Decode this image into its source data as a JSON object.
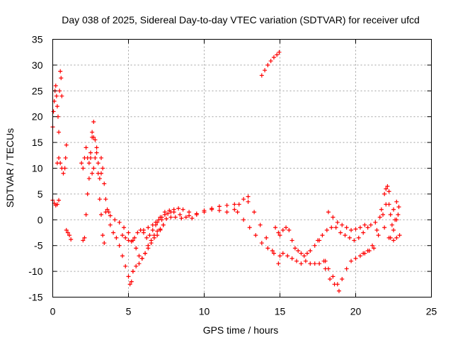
{
  "chart_data": {
    "type": "scatter",
    "title": "Day 038 of 2025, Sidereal Day-to-day VTEC variation (SDTVAR) for receiver ufcd",
    "xlabel": "GPS time / hours",
    "ylabel": "SDTVAR / TECUs",
    "xlim": [
      0,
      25
    ],
    "ylim": [
      -15,
      35
    ],
    "xticks": [
      0,
      5,
      10,
      15,
      20,
      25
    ],
    "yticks": [
      -15,
      -10,
      -5,
      0,
      5,
      10,
      15,
      20,
      25,
      30,
      35
    ],
    "grid": true,
    "marker": "plus",
    "color": "#ff0000",
    "series": [
      {
        "name": "s1",
        "x": [
          0.0,
          0.05,
          0.1,
          0.15,
          0.2,
          0.25,
          0.3,
          0.35,
          0.4
        ],
        "y": [
          18,
          21,
          23,
          25,
          26,
          24,
          22,
          20,
          17
        ]
      },
      {
        "name": "s2",
        "x": [
          0.0,
          0.1,
          0.2,
          0.3,
          0.4
        ],
        "y": [
          3.8,
          3.2,
          2.8,
          3.0,
          3.8
        ]
      },
      {
        "name": "s3",
        "x": [
          0.45,
          0.5,
          0.55,
          0.6
        ],
        "y": [
          25,
          28.8,
          27.5,
          24
        ]
      },
      {
        "name": "s4",
        "x": [
          0.3,
          0.4,
          0.5,
          0.6,
          0.7,
          0.8,
          0.85,
          0.9
        ],
        "y": [
          11,
          12,
          11,
          10,
          9,
          10,
          12,
          14.5
        ]
      },
      {
        "name": "s5",
        "x": [
          0.9,
          1.0,
          1.1,
          1.2
        ],
        "y": [
          -2.0,
          -2.5,
          -3.0,
          -3.8
        ]
      },
      {
        "name": "s6",
        "x": [
          1.9,
          2.0,
          2.1,
          2.2,
          2.3,
          2.4,
          2.5,
          2.6,
          2.7,
          2.8,
          2.9,
          3.0,
          3.1,
          3.2
        ],
        "y": [
          11.0,
          10.0,
          12.0,
          14.0,
          12.0,
          11.0,
          13.0,
          9.0,
          10.0,
          12.0,
          14.0,
          11.0,
          8.0,
          9.0
        ]
      },
      {
        "name": "s7",
        "x": [
          2.0,
          2.1,
          2.2,
          2.3,
          2.4,
          2.5,
          2.6,
          2.7
        ],
        "y": [
          -4.0,
          -3.5,
          1.0,
          5.0,
          8.0,
          12.0,
          16.0,
          19.0
        ]
      },
      {
        "name": "s8",
        "x": [
          2.6,
          2.7,
          2.8,
          2.9,
          3.0,
          3.1,
          3.2,
          3.3,
          3.4
        ],
        "y": [
          17.0,
          16.0,
          15.5,
          13.0,
          9.0,
          4.0,
          1.0,
          -3.0,
          -4.5
        ]
      },
      {
        "name": "s9",
        "x": [
          3.2,
          3.3,
          3.4,
          3.5,
          3.6,
          3.7
        ],
        "y": [
          12.0,
          10.0,
          7.0,
          4.0,
          2.0,
          1.5
        ]
      },
      {
        "name": "s10",
        "x": [
          3.8,
          4.0,
          4.2,
          4.4,
          4.6,
          4.8,
          5.0,
          5.1,
          5.2,
          5.3
        ],
        "y": [
          -1.0,
          -2.5,
          -3.5,
          -5.0,
          -7.0,
          -9.0,
          -11.0,
          -12.5,
          -12.0,
          -10.0
        ]
      },
      {
        "name": "s11",
        "x": [
          3.5,
          3.8,
          4.1,
          4.4,
          4.7,
          5.0
        ],
        "y": [
          1.5,
          0.8,
          0.0,
          -0.5,
          -1.5,
          -2.5
        ]
      },
      {
        "name": "s12",
        "x": [
          5.3,
          5.5,
          5.7,
          5.9,
          6.1,
          6.3,
          6.5,
          6.7,
          6.9,
          7.1,
          7.3
        ],
        "y": [
          -10.0,
          -9.0,
          -8.5,
          -7.5,
          -6.5,
          -5.5,
          -4.5,
          -3.5,
          -3.0,
          -2.0,
          -1.0
        ]
      },
      {
        "name": "s13",
        "x": [
          4.6,
          4.8,
          5.0,
          5.2,
          5.4,
          5.6,
          5.8,
          6.0,
          6.2,
          6.4,
          6.6,
          6.8,
          7.0,
          7.2,
          7.4,
          7.6,
          7.8,
          8.0,
          8.4,
          8.8,
          9.2
        ],
        "y": [
          -3.0,
          -3.5,
          -4.0,
          -4.2,
          -3.5,
          -2.5,
          -2.0,
          -2.5,
          -3.5,
          -3.0,
          -2.0,
          -1.0,
          0.0,
          0.5,
          1.0,
          1.2,
          1.5,
          1.5,
          1.0,
          0.5,
          0.3
        ]
      },
      {
        "name": "s14",
        "x": [
          5.3,
          5.5,
          5.7,
          5.9,
          6.1,
          6.3,
          6.5,
          6.7,
          6.9,
          7.1,
          7.3
        ],
        "y": [
          -4.0,
          -5.5,
          -7.0,
          -7.5,
          -6.5,
          -5.0,
          -4.0,
          -3.0,
          -2.2,
          -1.8,
          -1.0
        ]
      },
      {
        "name": "s15",
        "x": [
          6.0,
          6.3,
          6.6,
          6.9,
          7.2,
          7.5,
          7.8,
          8.1,
          8.5,
          9.0,
          9.5,
          10.0,
          10.5,
          11.0,
          11.5,
          12.0
        ],
        "y": [
          -2.0,
          -1.5,
          -1.0,
          -0.5,
          0.0,
          0.2,
          0.5,
          0.5,
          0.3,
          0.8,
          1.2,
          1.8,
          2.2,
          2.6,
          2.8,
          3.0
        ]
      },
      {
        "name": "s16",
        "x": [
          6.8,
          7.1,
          7.4,
          7.7,
          8.0,
          8.3,
          8.6,
          9.0,
          9.5,
          10.0,
          10.5,
          11.0,
          11.5,
          12.0,
          12.3,
          12.6,
          12.9
        ],
        "y": [
          -0.5,
          0.5,
          1.5,
          1.8,
          2.0,
          2.2,
          2.0,
          1.5,
          1.0,
          1.5,
          2.0,
          1.8,
          1.5,
          2.0,
          3.0,
          4.0,
          4.5
        ]
      },
      {
        "name": "s17",
        "x": [
          12.2,
          12.6,
          13.0,
          13.4,
          13.8,
          14.2,
          14.6,
          15.0
        ],
        "y": [
          1.5,
          0.0,
          -1.5,
          -3.0,
          -4.5,
          -5.5,
          -6.5,
          -7.0
        ]
      },
      {
        "name": "s18",
        "x": [
          12.9,
          13.3,
          13.7,
          14.1,
          14.5,
          14.9
        ],
        "y": [
          3.5,
          1.5,
          -1.0,
          -3.5,
          -6.0,
          -8.5
        ]
      },
      {
        "name": "s19",
        "x": [
          13.8,
          14.0,
          14.2,
          14.4,
          14.6,
          14.8,
          14.95
        ],
        "y": [
          28.0,
          29.0,
          30.0,
          30.8,
          31.5,
          32.0,
          32.5
        ]
      },
      {
        "name": "s20",
        "x": [
          14.7,
          14.9
        ],
        "y": [
          -1.5,
          -2.5
        ]
      },
      {
        "name": "s21",
        "x": [
          15.0,
          15.2,
          15.4,
          15.6,
          15.8,
          16.0,
          16.2,
          16.4,
          16.6,
          16.8,
          17.0,
          17.3,
          17.6
        ],
        "y": [
          -3.0,
          -2.0,
          -1.5,
          -2.0,
          -4.0,
          -5.5,
          -6.0,
          -6.5,
          -7.0,
          -6.5,
          -6.0,
          -5.0,
          -4.0
        ]
      },
      {
        "name": "s22",
        "x": [
          15.2,
          15.5,
          15.8,
          16.1,
          16.4,
          16.7,
          17.0,
          17.3,
          17.6,
          18.0
        ],
        "y": [
          -6.5,
          -7.0,
          -7.5,
          -8.0,
          -8.5,
          -8.0,
          -8.5,
          -8.5,
          -8.5,
          -8.0
        ]
      },
      {
        "name": "s23",
        "x": [
          17.5,
          17.8,
          18.1,
          18.4,
          18.7,
          19.0,
          19.3,
          19.6,
          19.9,
          20.2,
          20.5,
          20.8
        ],
        "y": [
          -4.0,
          -3.0,
          -2.0,
          -1.5,
          -1.5,
          -2.5,
          -3.0,
          -3.5,
          -4.0,
          -3.5,
          -2.5,
          -1.5
        ]
      },
      {
        "name": "s24",
        "x": [
          18.2,
          18.5,
          18.8,
          19.1,
          19.4,
          19.7,
          20.0,
          20.3,
          20.6
        ],
        "y": [
          1.5,
          0.5,
          -0.5,
          -1.0,
          -1.5,
          -2.0,
          -1.8,
          -1.5,
          -1.0
        ]
      },
      {
        "name": "s25",
        "x": [
          17.9,
          18.2,
          18.5,
          18.8,
          19.1,
          19.4,
          19.7,
          20.0,
          20.3,
          20.6,
          20.9,
          21.2,
          21.5,
          21.8,
          22.0
        ],
        "y": [
          -8.0,
          -9.5,
          -11.0,
          -12.5,
          -11.5,
          -9.5,
          -8.0,
          -7.5,
          -7.0,
          -6.5,
          -6.0,
          -5.5,
          -3.0,
          1.0,
          3.0
        ]
      },
      {
        "name": "s26",
        "x": [
          18.0,
          18.3,
          18.6,
          18.9
        ],
        "y": [
          -9.5,
          -11.5,
          -12.5,
          -13.8
        ]
      },
      {
        "name": "s27",
        "x": [
          20.5,
          20.8,
          21.1,
          21.4,
          21.7,
          21.9,
          22.0,
          22.1,
          22.2
        ],
        "y": [
          -6.5,
          -6.0,
          -5.0,
          -2.0,
          2.0,
          5.0,
          6.0,
          6.5,
          5.5
        ]
      },
      {
        "name": "s28",
        "x": [
          21.0,
          21.3,
          21.6,
          21.9,
          22.2,
          22.5,
          22.7
        ],
        "y": [
          -1.0,
          -0.5,
          0.5,
          -1.5,
          -3.5,
          -4.0,
          -3.5
        ]
      },
      {
        "name": "s29",
        "x": [
          22.2,
          22.3,
          22.4,
          22.5,
          22.6,
          22.7,
          22.8,
          22.9
        ],
        "y": [
          3.0,
          1.0,
          -1.0,
          2.0,
          0.0,
          3.5,
          1.0,
          -3.0
        ]
      },
      {
        "name": "s30",
        "x": [
          22.3,
          22.5,
          22.7,
          22.85
        ],
        "y": [
          -3.5,
          -2.0,
          0.0,
          2.5
        ]
      }
    ]
  }
}
